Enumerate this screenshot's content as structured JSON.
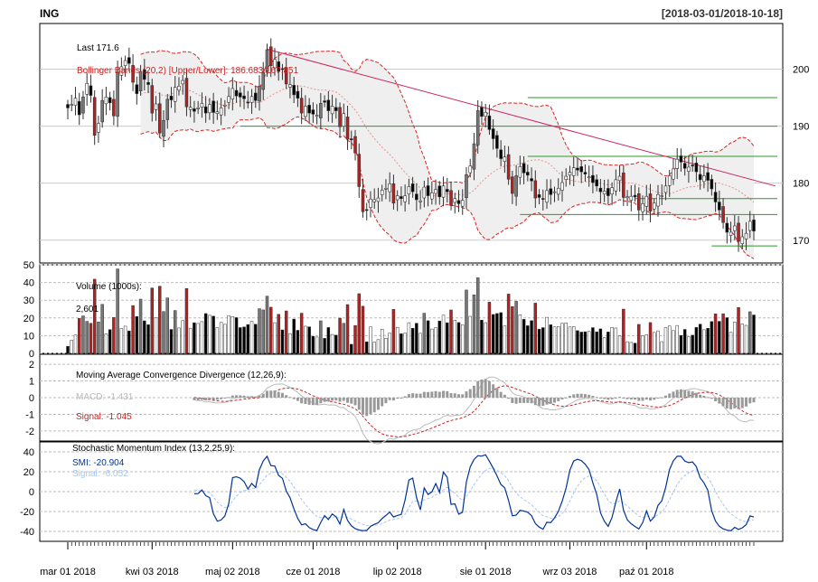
{
  "header": {
    "symbol": "ING",
    "range": "[2018-03-01/2018-10-18]"
  },
  "colors": {
    "up": "#ffffff",
    "down": "#000000",
    "highlight": "#b22222",
    "bollinger_band": "#dd2222",
    "trendline": "#cc2266",
    "support_lines": "#2a9a2a",
    "macd_line": "#bbbbbb",
    "signal_line": "#cc2222",
    "smi_line": "#003399",
    "smi_signal": "#a9c4ee",
    "grid": "#d0d0d0"
  },
  "chart_data": [
    {
      "type": "candlestick",
      "panel": "price",
      "legend": {
        "last": "Last 171.6",
        "bollinger": "Bollinger Bands (20,2) [Upper/Lower]: 186.683/167.851"
      },
      "y_ticks": [
        170,
        180,
        190,
        200
      ],
      "ylim": [
        166,
        208
      ],
      "x_ticks": [
        "mar 01 2018",
        "kwi 03 2018",
        "maj 02 2018",
        "cze 01 2018",
        "lip 02 2018",
        "sie 01 2018",
        "wrz 03 2018",
        "paź 01 2018"
      ],
      "x_tick_index": [
        0,
        22,
        43,
        64,
        86,
        109,
        131,
        151
      ],
      "close_series_approx": [
        193.2,
        193.8,
        194.9,
        192.0,
        195.1,
        197.5,
        195.4,
        188.4,
        190.5,
        194.5,
        195.1,
        194.1,
        191.8,
        199.5,
        200.4,
        201.5,
        201.0,
        197.7,
        195.7,
        199.6,
        198.2,
        197.3,
        192.3,
        193.9,
        188.8,
        191.0,
        194.7,
        194.6,
        196.8,
        197.0,
        198.0,
        193.4,
        193.3,
        192.6,
        193.2,
        194.0,
        192.3,
        193.8,
        192.4,
        192.5,
        193.2,
        193.7,
        195.2,
        196.6,
        195.3,
        195.1,
        194.8,
        194.2,
        195.2,
        194.5,
        197.0,
        199.4,
        203.4,
        200.6,
        201.7,
        199.6,
        200.0,
        197.4,
        197.3,
        195.5,
        194.9,
        192.3,
        193.5,
        192.3,
        192.1,
        191.9,
        194.0,
        194.2,
        192.7,
        193.5,
        192.7,
        189.9,
        192.2,
        187.7,
        187.6,
        185.3,
        179.4,
        175.0,
        175.3,
        177.2,
        177.1,
        177.4,
        178.8,
        179.1,
        179.9,
        176.5,
        177.8,
        177.3,
        177.8,
        179.4,
        178.5,
        177.1,
        176.9,
        179.3,
        177.8,
        178.3,
        178.9,
        177.6,
        179.5,
        178.5,
        176.1,
        177.3,
        176.4,
        177.0,
        181.5,
        183.0,
        186.9,
        192.7,
        191.7,
        192.4,
        189.4,
        187.8,
        186.1,
        184.3,
        184.6,
        180.7,
        178.2,
        181.3,
        182.9,
        181.8,
        181.4,
        180.4,
        177.4,
        177.5,
        177.2,
        178.7,
        178.0,
        178.5,
        179.1,
        180.1,
        181.2,
        181.9,
        182.7,
        182.3,
        182.0,
        181.6,
        181.1,
        180.1,
        179.5,
        178.5,
        178.6,
        177.8,
        179.2,
        180.6,
        181.2,
        177.5,
        177.6,
        177.7,
        177.6,
        175.3,
        176.4,
        177.7,
        175.1,
        176.5,
        178.0,
        177.8,
        179.5,
        181.3,
        182.5,
        184.2,
        183.7,
        182.6,
        182.8,
        183.1,
        182.0,
        180.6,
        181.3,
        180.5,
        179.0,
        176.7,
        175.3,
        173.1,
        171.4,
        171.4,
        172.5,
        169.8,
        170.6,
        171.2,
        173.3,
        171.6
      ]
    },
    {
      "type": "bar",
      "panel": "volume",
      "legend": {
        "title": "Volume (1000s):",
        "last": "2,601"
      },
      "y_ticks": [
        0,
        10,
        20,
        30,
        40,
        50
      ],
      "ylim": [
        0,
        50
      ]
    },
    {
      "type": "line",
      "panel": "macd",
      "legend": {
        "title": "Moving Average Convergence Divergence (12,26,9):",
        "macd": "MACD: -1.431",
        "signal": "Signal: -1.045"
      },
      "y_ticks": [
        -2,
        -1,
        0,
        1,
        2
      ],
      "ylim": [
        -2.6,
        2.6
      ]
    },
    {
      "type": "line",
      "panel": "smi",
      "legend": {
        "title": "Stochastic Momentum Index (13,2,25,9):",
        "smi": "SMI: -20.904",
        "signal": "Signal: -6.052"
      },
      "y_ticks": [
        -40,
        -20,
        0,
        20,
        40
      ],
      "ylim": [
        -50,
        50
      ]
    }
  ]
}
